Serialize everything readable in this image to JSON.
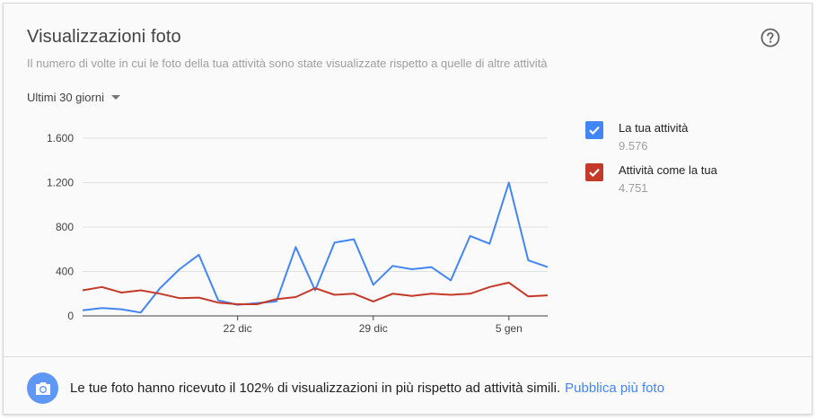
{
  "card": {
    "title": "Visualizzazioni foto",
    "subtitle": "Il numero di volte in cui le foto della tua attività sono state visualizzate rispetto a quelle di altre attività",
    "help_icon": "help-circle-icon"
  },
  "range_selector": {
    "label": "Ultimi 30 giorni",
    "icon": "caret-down-icon"
  },
  "legend": [
    {
      "name": "La tua attività",
      "value": "9.576",
      "color": "#4285f4",
      "checked": true
    },
    {
      "name": "Attività come la tua",
      "value": "4.751",
      "color": "#c53929",
      "checked": true
    }
  ],
  "chart_data": {
    "type": "line",
    "ylim": [
      0,
      1600
    ],
    "yticks": [
      0,
      400,
      800,
      1200,
      1600
    ],
    "ytick_labels": [
      "0",
      "400",
      "800",
      "1.200",
      "1.600"
    ],
    "xticks": [
      {
        "index": 8,
        "label": "22 dic"
      },
      {
        "index": 15,
        "label": "29 dic"
      },
      {
        "index": 22,
        "label": "5 gen"
      }
    ],
    "grid": true,
    "series": [
      {
        "name": "La tua attività",
        "color": "#4285f4",
        "values": [
          50,
          70,
          60,
          30,
          250,
          420,
          550,
          140,
          100,
          115,
          130,
          620,
          230,
          660,
          690,
          280,
          450,
          420,
          440,
          320,
          720,
          650,
          1200,
          500,
          440
        ]
      },
      {
        "name": "Attività come la tua",
        "color": "#c53929",
        "values": [
          230,
          260,
          210,
          230,
          200,
          160,
          165,
          120,
          105,
          105,
          150,
          170,
          250,
          190,
          200,
          130,
          200,
          180,
          200,
          190,
          200,
          260,
          300,
          175,
          185
        ]
      }
    ]
  },
  "footer": {
    "icon": "camera-icon",
    "icon_color": "#5e97f6",
    "text": "Le tue foto hanno ricevuto il 102% di visualizzazioni in più rispetto ad attività simili.",
    "link": "Pubblica più foto"
  }
}
